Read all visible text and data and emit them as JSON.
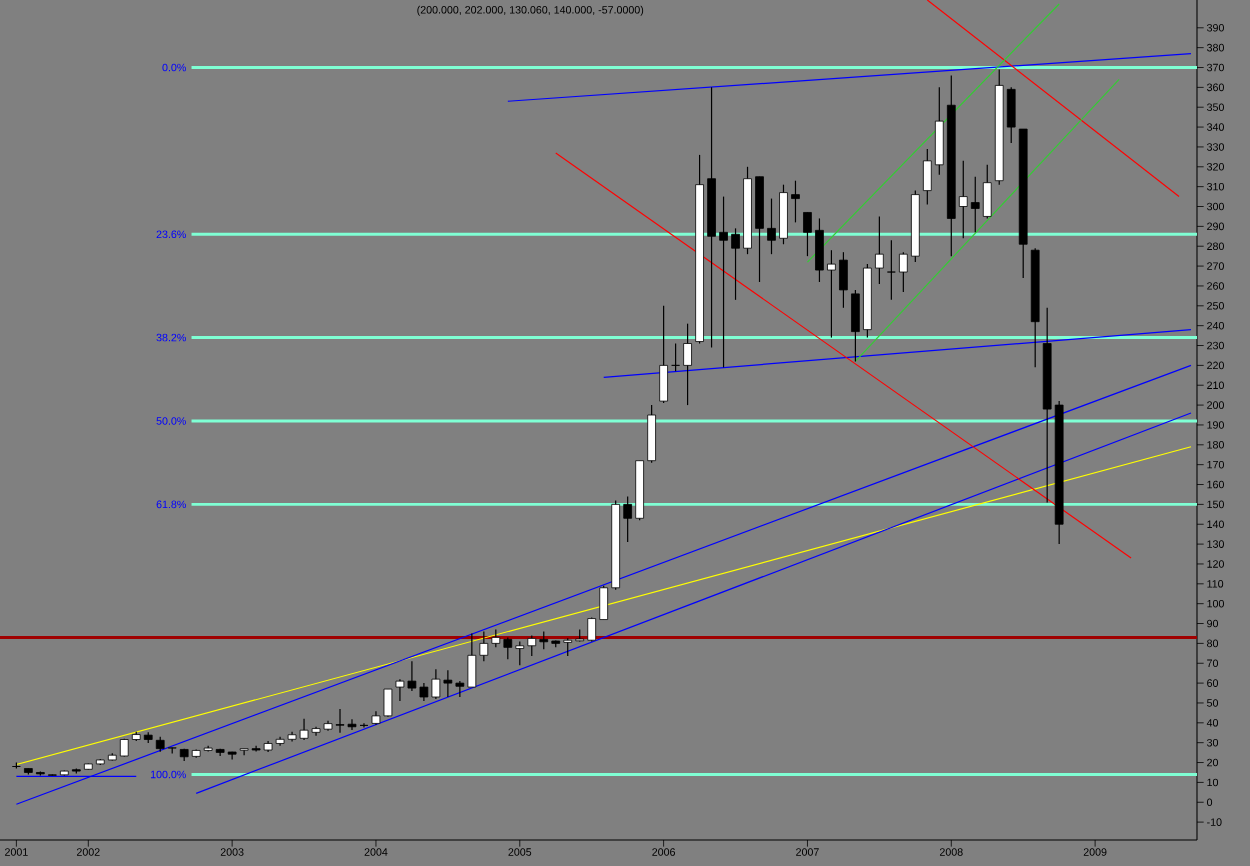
{
  "chart_data": {
    "type": "candlestick",
    "title": "(200.000, 202.000, 130.060, 140.000, -57.0000)",
    "x": [
      "2001-07",
      "2001-08",
      "2001-09",
      "2001-10",
      "2001-11",
      "2001-12",
      "2002-01",
      "2002-02",
      "2002-03",
      "2002-04",
      "2002-05",
      "2002-06",
      "2002-07",
      "2002-08",
      "2002-09",
      "2002-10",
      "2002-11",
      "2002-12",
      "2003-01",
      "2003-02",
      "2003-03",
      "2003-04",
      "2003-05",
      "2003-06",
      "2003-07",
      "2003-08",
      "2003-09",
      "2003-10",
      "2003-11",
      "2003-12",
      "2004-01",
      "2004-02",
      "2004-03",
      "2004-04",
      "2004-05",
      "2004-06",
      "2004-07",
      "2004-08",
      "2004-09",
      "2004-10",
      "2004-11",
      "2004-12",
      "2005-01",
      "2005-02",
      "2005-03",
      "2005-04",
      "2005-05",
      "2005-06",
      "2005-07",
      "2005-08",
      "2005-09",
      "2005-10",
      "2005-11",
      "2005-12",
      "2006-01",
      "2006-02",
      "2006-03",
      "2006-04",
      "2006-05",
      "2006-06",
      "2006-07",
      "2006-08",
      "2006-09",
      "2006-10",
      "2006-11",
      "2006-12",
      "2007-01",
      "2007-02",
      "2007-03",
      "2007-04",
      "2007-05",
      "2007-06",
      "2007-07",
      "2007-08",
      "2007-09",
      "2007-10",
      "2007-11",
      "2007-12",
      "2008-01",
      "2008-02",
      "2008-03",
      "2008-04",
      "2008-05",
      "2008-06",
      "2008-07",
      "2008-08",
      "2008-09",
      "2008-10"
    ],
    "ohlc": [
      [
        18,
        20,
        17,
        18
      ],
      [
        17,
        17,
        14,
        15
      ],
      [
        15,
        15.5,
        13.5,
        14.3
      ],
      [
        13.8,
        14,
        13.5,
        13.6
      ],
      [
        13.8,
        16,
        13.5,
        15.7
      ],
      [
        16.4,
        17,
        14.5,
        15.7
      ],
      [
        16.6,
        19.5,
        16.4,
        19.3
      ],
      [
        19.3,
        21.8,
        18.8,
        21.3
      ],
      [
        21.3,
        24.7,
        21,
        23.7
      ],
      [
        23.3,
        32,
        23,
        31.6
      ],
      [
        31.6,
        35.5,
        30.8,
        34.1
      ],
      [
        33.8,
        35.3,
        29.8,
        31.6
      ],
      [
        31.2,
        33,
        25.4,
        27
      ],
      [
        27.3,
        27.6,
        24.5,
        27.4
      ],
      [
        26.6,
        27,
        20.8,
        22.9
      ],
      [
        23.1,
        26.6,
        22.4,
        26.1
      ],
      [
        26.1,
        28.5,
        25.6,
        27.3
      ],
      [
        26.6,
        27,
        23.3,
        25.1
      ],
      [
        25.3,
        25.4,
        21.5,
        24.2
      ],
      [
        26.2,
        27,
        23.7,
        27
      ],
      [
        27,
        28.5,
        25.6,
        26.3
      ],
      [
        26.3,
        30.8,
        25.3,
        29.6
      ],
      [
        29.6,
        33,
        28.5,
        31.7
      ],
      [
        31.7,
        35.5,
        30.6,
        34
      ],
      [
        32.2,
        42,
        31.3,
        36.3
      ],
      [
        35.2,
        38,
        33.5,
        37.1
      ],
      [
        36.8,
        41,
        36,
        39.6
      ],
      [
        39.1,
        47,
        35,
        38.8
      ],
      [
        39.3,
        41.8,
        36.4,
        38
      ],
      [
        38.7,
        39.8,
        37.6,
        38.7
      ],
      [
        39.7,
        45.8,
        39,
        43.5
      ],
      [
        43.5,
        57,
        43,
        57
      ],
      [
        58,
        62,
        51,
        61
      ],
      [
        61,
        71,
        56,
        57.5
      ],
      [
        58,
        60,
        51,
        53
      ],
      [
        53,
        67,
        52,
        62
      ],
      [
        61.5,
        66.5,
        53,
        60
      ],
      [
        60,
        61,
        53,
        58.4
      ],
      [
        58,
        85,
        58,
        74
      ],
      [
        74,
        86,
        71,
        80
      ],
      [
        80,
        87,
        78,
        83
      ],
      [
        82,
        83,
        72,
        78
      ],
      [
        77.4,
        81,
        69,
        78.8
      ],
      [
        78.8,
        84,
        73.6,
        82.5
      ],
      [
        82,
        86,
        77,
        80.8
      ],
      [
        81.2,
        81.5,
        78,
        80
      ],
      [
        80.5,
        82.6,
        73.6,
        81.6
      ],
      [
        81.3,
        87,
        81,
        82.2
      ],
      [
        81.6,
        93,
        81,
        92.5
      ],
      [
        92,
        109,
        92,
        108
      ],
      [
        108,
        152,
        107,
        150
      ],
      [
        150,
        154,
        131,
        143
      ],
      [
        143,
        172,
        142,
        172
      ],
      [
        172,
        200,
        171,
        195
      ],
      [
        202,
        250,
        201,
        220
      ],
      [
        220,
        231,
        217,
        220
      ],
      [
        220,
        241,
        200,
        231
      ],
      [
        232,
        326,
        231,
        311
      ],
      [
        314,
        360,
        229,
        285
      ],
      [
        287,
        305,
        219,
        283
      ],
      [
        286,
        289,
        253,
        279
      ],
      [
        279,
        320,
        276,
        314
      ],
      [
        315,
        315,
        262,
        289
      ],
      [
        289,
        304,
        276,
        283
      ],
      [
        284,
        311,
        281,
        307
      ],
      [
        306,
        313,
        292,
        304
      ],
      [
        297,
        297,
        275,
        287
      ],
      [
        288,
        294,
        262,
        268
      ],
      [
        268,
        278,
        234,
        271
      ],
      [
        273,
        277,
        249,
        258
      ],
      [
        256,
        258,
        222,
        237
      ],
      [
        238,
        271,
        234,
        269
      ],
      [
        269,
        295,
        261,
        276
      ],
      [
        267,
        283,
        253,
        267
      ],
      [
        267,
        277,
        257,
        276
      ],
      [
        275,
        308,
        272,
        306
      ],
      [
        308,
        329,
        301,
        323
      ],
      [
        321,
        360,
        316,
        343
      ],
      [
        351,
        366,
        275,
        294
      ],
      [
        300,
        323,
        284,
        305
      ],
      [
        302,
        315,
        287,
        299
      ],
      [
        295,
        321,
        294,
        312
      ],
      [
        313,
        369,
        311,
        361
      ],
      [
        359,
        360,
        332,
        340
      ],
      [
        339,
        339,
        264,
        281
      ],
      [
        278,
        279,
        219,
        242
      ],
      [
        231,
        249,
        151,
        198
      ],
      [
        200,
        202,
        130.06,
        140
      ]
    ],
    "series": [
      {
        "type": "line",
        "color": "#ffff00",
        "x": [
          "2001-07",
          "2009-09"
        ],
        "values": [
          19,
          179
        ]
      },
      {
        "type": "line",
        "color": "#0000ff",
        "x": [
          "2001-07",
          "2009-09"
        ],
        "values": [
          -1,
          220
        ]
      },
      {
        "type": "line",
        "color": "#0000ff",
        "x": [
          "2002-10",
          "2009-09"
        ],
        "values": [
          4.5,
          196
        ]
      },
      {
        "type": "line",
        "color": "#0000ff",
        "x": [
          "2001-07",
          "2002-05"
        ],
        "values": [
          13,
          13
        ]
      },
      {
        "type": "line",
        "color": "#0000ff",
        "x": [
          "2004-12",
          "2009-09"
        ],
        "values": [
          353,
          377
        ]
      },
      {
        "type": "line",
        "color": "#0000ff",
        "x": [
          "2005-08",
          "2009-09"
        ],
        "values": [
          214,
          238
        ]
      },
      {
        "type": "line",
        "color": "#ff0000",
        "x": [
          "2005-04",
          "2009-04"
        ],
        "values": [
          327,
          123
        ]
      },
      {
        "type": "line",
        "color": "#ff0000",
        "x": [
          "2007-11",
          "2009-08"
        ],
        "values": [
          404,
          305
        ]
      },
      {
        "type": "line",
        "color": "#33cc33",
        "x": [
          "2007-01",
          "2008-10"
        ],
        "values": [
          272,
          402
        ]
      },
      {
        "type": "line",
        "color": "#33cc33",
        "x": [
          "2007-05",
          "2009-03"
        ],
        "values": [
          222,
          364
        ]
      }
    ],
    "ref_lines": [
      {
        "axis": "y",
        "value": 370,
        "color": "#7fffd4"
      },
      {
        "axis": "y",
        "value": 286,
        "color": "#7fffd4"
      },
      {
        "axis": "y",
        "value": 234,
        "color": "#7fffd4"
      },
      {
        "axis": "y",
        "value": 192,
        "color": "#7fffd4"
      },
      {
        "axis": "y",
        "value": 150,
        "color": "#7fffd4"
      },
      {
        "axis": "y",
        "value": 14,
        "color": "#7fffd4"
      },
      {
        "axis": "y",
        "value": 83,
        "color": "#a00000"
      }
    ],
    "annotations": [
      "0.0%",
      "23.6%",
      "38.2%",
      "50.0%",
      "61.8%",
      "100.0%"
    ],
    "xlim": [
      "2001-05-20",
      "2009-09-16"
    ],
    "xticks": [
      {
        "value": "2001-07",
        "label": "2001"
      },
      {
        "value": "2002-01",
        "label": "2002"
      },
      {
        "value": "2003-01",
        "label": "2003"
      },
      {
        "value": "2004-01",
        "label": "2004"
      },
      {
        "value": "2005-01",
        "label": "2005"
      },
      {
        "value": "2006-01",
        "label": "2006"
      },
      {
        "value": "2007-01",
        "label": "2007"
      },
      {
        "value": "2008-01",
        "label": "2008"
      },
      {
        "value": "2009-01",
        "label": "2009"
      }
    ],
    "ylim": [
      -19,
      404
    ],
    "yticks": [
      -10,
      0,
      10,
      20,
      30,
      40,
      50,
      60,
      70,
      80,
      90,
      100,
      110,
      120,
      130,
      140,
      150,
      160,
      170,
      180,
      190,
      200,
      210,
      220,
      230,
      240,
      250,
      260,
      270,
      280,
      290,
      300,
      310,
      320,
      330,
      340,
      350,
      360,
      370,
      380,
      390
    ]
  }
}
